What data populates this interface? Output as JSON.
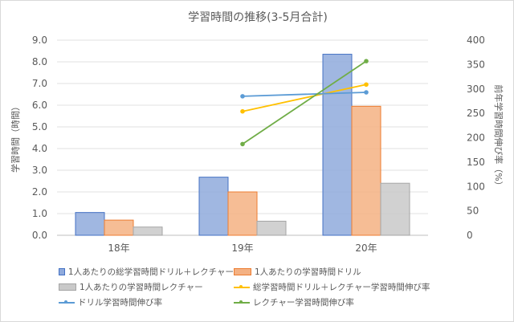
{
  "chart_data": {
    "type": "bar",
    "title": "学習時間の推移(3-5月合計)",
    "categories": [
      "18年",
      "19年",
      "20年"
    ],
    "ylabel": "学習時間（時間）",
    "y2label": "前年学習時間伸び率（%）",
    "ylim": [
      0,
      9
    ],
    "y2lim": [
      0,
      400
    ],
    "yticks": [
      "0.0",
      "1.0",
      "2.0",
      "3.0",
      "4.0",
      "5.0",
      "6.0",
      "7.0",
      "8.0",
      "9.0"
    ],
    "y2ticks": [
      "0",
      "50",
      "100",
      "150",
      "200",
      "250",
      "300",
      "350",
      "400"
    ],
    "grid": true,
    "legend_position": "bottom",
    "series": [
      {
        "name": "1人あたりの総学習時間ドリル＋レクチャー",
        "kind": "bar",
        "axis": "left",
        "color": "#8faadc",
        "values": [
          1.05,
          2.68,
          8.35
        ]
      },
      {
        "name": "1人あたりの学習時間ドリル",
        "kind": "bar",
        "axis": "left",
        "color": "#f4b183",
        "values": [
          0.7,
          2.0,
          5.95
        ]
      },
      {
        "name": "1人あたりの学習時間レクチャー",
        "kind": "bar",
        "axis": "left",
        "color": "#c9c9c9",
        "values": [
          0.38,
          0.65,
          2.4
        ]
      },
      {
        "name": "総学習時間ドリル＋レクチャー学習時間伸び率",
        "kind": "line",
        "axis": "right",
        "color": "#ffc000",
        "values": [
          null,
          254,
          309
        ]
      },
      {
        "name": "ドリル学習時間伸び率",
        "kind": "line",
        "axis": "right",
        "color": "#5b9bd5",
        "values": [
          null,
          285,
          293
        ]
      },
      {
        "name": "レクチャー学習時間伸び率",
        "kind": "line",
        "axis": "right",
        "color": "#70ad47",
        "values": [
          null,
          187,
          357
        ]
      }
    ]
  }
}
